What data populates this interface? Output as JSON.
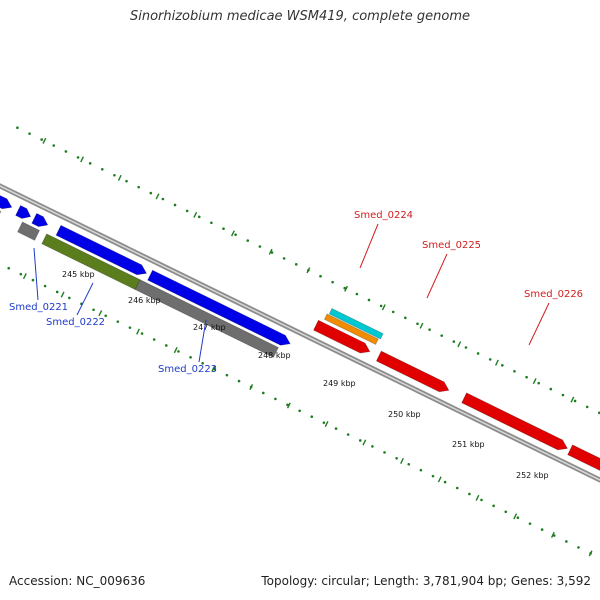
{
  "title": "Sinorhizobium medicae WSM419, complete genome",
  "footer": {
    "accession": "Accession: NC_009636",
    "summary": "Topology: circular; Length: 3,781,904 bp; Genes: 3,592"
  },
  "colors": {
    "backbone": "#8c8c8c",
    "ruler": "#1e7d1e",
    "cds_plus": "#0000e6",
    "cds_minus": "#e00000",
    "gene": "#6e6e6e",
    "rrna": "#5a7d1e",
    "misc_orange": "#f08c00",
    "misc_cyan": "#00c8d2",
    "label_blue": "#1e3cc8",
    "label_red": "#d21e1e"
  },
  "ruler_ticks": [
    "245 kbp",
    "246 kbp",
    "247 kbp",
    "248 kbp",
    "249 kbp",
    "250 kbp",
    "251 kbp",
    "252 kbp"
  ],
  "gene_labels": [
    {
      "id": "smed-0221",
      "text": "Smed_0221",
      "color": "label_blue"
    },
    {
      "id": "smed-0222",
      "text": "Smed_0222",
      "color": "label_blue"
    },
    {
      "id": "smed-0223",
      "text": "Smed_0223",
      "color": "label_blue"
    },
    {
      "id": "smed-0224",
      "text": "Smed_0224",
      "color": "label_red"
    },
    {
      "id": "smed-0225",
      "text": "Smed_0225",
      "color": "label_red"
    },
    {
      "id": "smed-0226",
      "text": "Smed_0226",
      "color": "label_red"
    }
  ]
}
